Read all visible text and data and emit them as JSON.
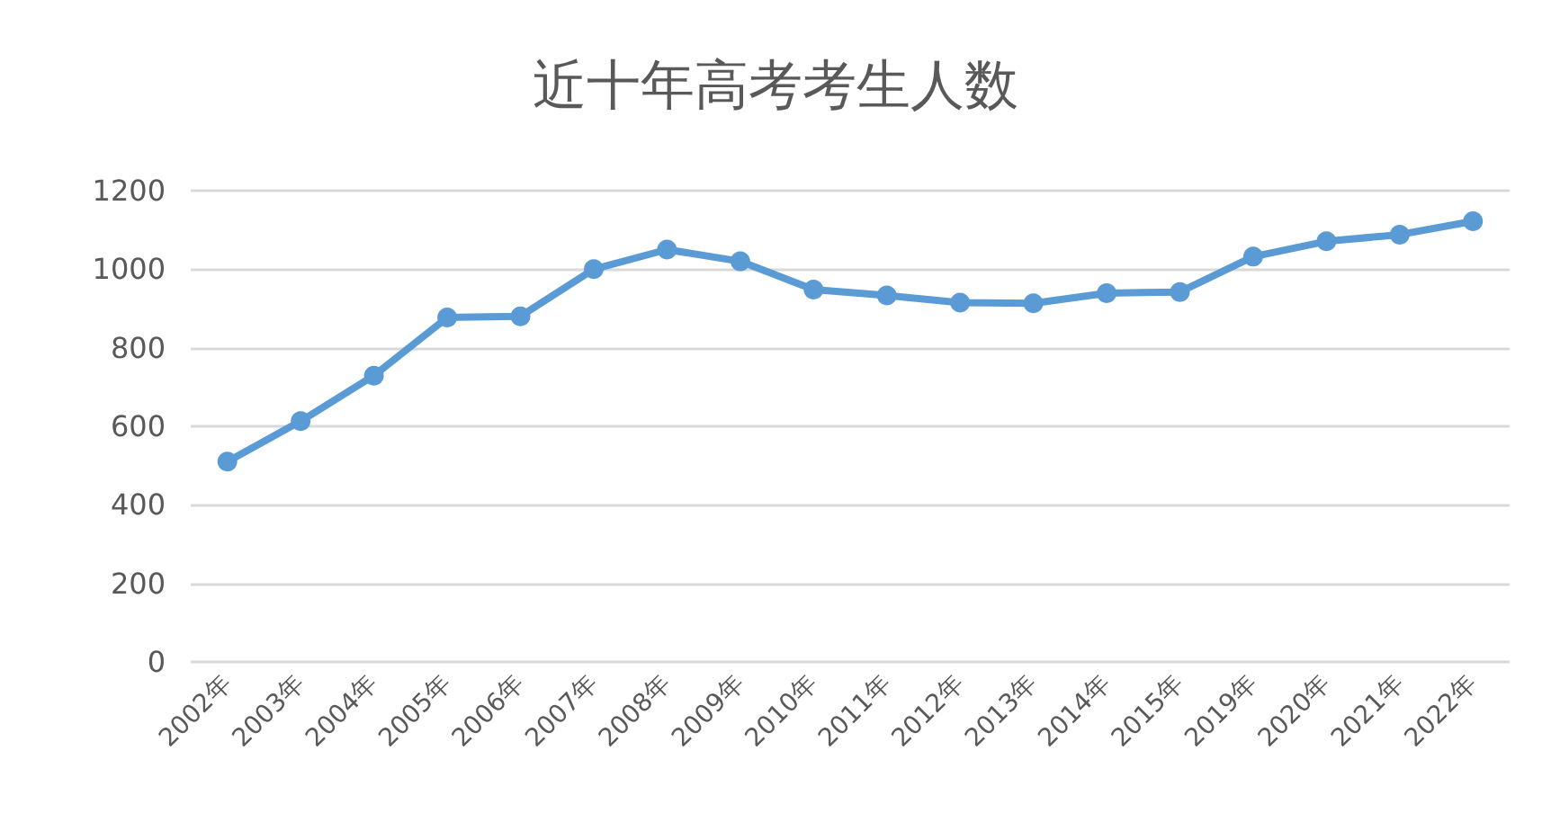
{
  "chart_data": {
    "type": "line",
    "title": "近十年高考考生人数",
    "categories": [
      "2002年",
      "2003年",
      "2004年",
      "2005年",
      "2006年",
      "2007年",
      "2008年",
      "2009年",
      "2010年",
      "2011年",
      "2012年",
      "2013年",
      "2014年",
      "2015年",
      "2019年",
      "2020年",
      "2021年",
      "2022年"
    ],
    "series": [
      {
        "color": "#5b9bd5",
        "values": [
          510,
          613,
          729,
          877,
          880,
          1000,
          1050,
          1020,
          948,
          933,
          915,
          913,
          939,
          942,
          1032,
          1071,
          1088,
          1122
        ]
      }
    ],
    "ylim": [
      0,
      1200
    ],
    "yticks": [
      0,
      200,
      400,
      600,
      800,
      1000,
      1200
    ],
    "grid": "y",
    "marker": "circle",
    "line_style": "solid"
  }
}
